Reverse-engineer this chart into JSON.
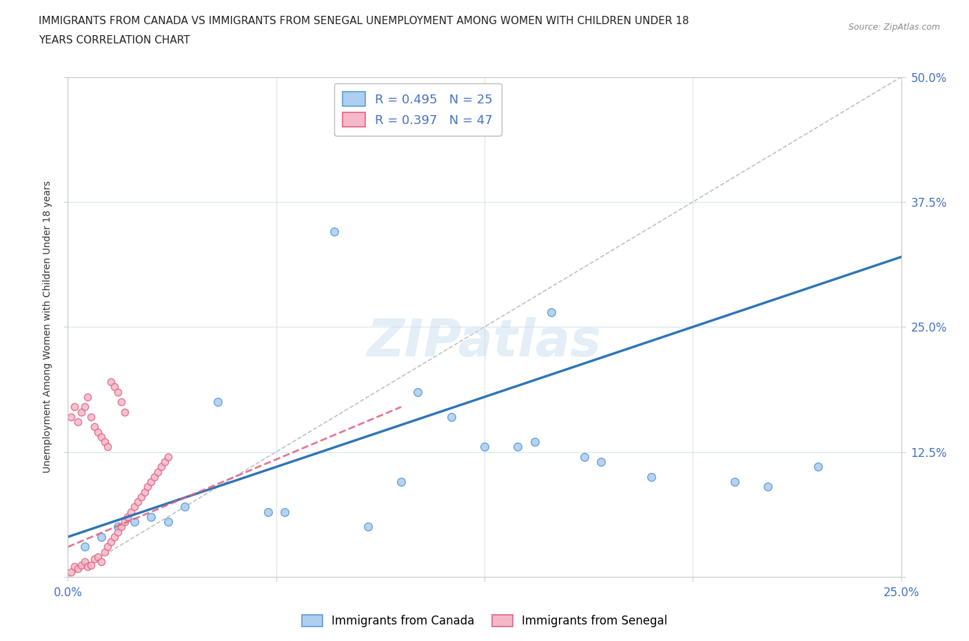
{
  "title_line1": "IMMIGRANTS FROM CANADA VS IMMIGRANTS FROM SENEGAL UNEMPLOYMENT AMONG WOMEN WITH CHILDREN UNDER 18",
  "title_line2": "YEARS CORRELATION CHART",
  "source": "Source: ZipAtlas.com",
  "ylabel": "Unemployment Among Women with Children Under 18 years",
  "xlim": [
    0.0,
    0.25
  ],
  "ylim": [
    0.0,
    0.5
  ],
  "xticks": [
    0.0,
    0.0625,
    0.125,
    0.1875,
    0.25
  ],
  "yticks": [
    0.0,
    0.125,
    0.25,
    0.375,
    0.5
  ],
  "xticklabels": [
    "0.0%",
    "",
    "",
    "",
    "25.0%"
  ],
  "yticklabels": [
    "",
    "12.5%",
    "25.0%",
    "37.5%",
    "50.0%"
  ],
  "canada_color": "#aecff0",
  "canada_edge": "#5b9bd5",
  "senegal_color": "#f4b8c8",
  "senegal_edge": "#e06080",
  "canada_R": 0.495,
  "canada_N": 25,
  "senegal_R": 0.397,
  "senegal_N": 47,
  "legend_label_canada": "Immigrants from Canada",
  "legend_label_senegal": "Immigrants from Senegal",
  "canada_x": [
    0.005,
    0.01,
    0.015,
    0.02,
    0.025,
    0.03,
    0.035,
    0.045,
    0.06,
    0.065,
    0.09,
    0.1,
    0.115,
    0.125,
    0.135,
    0.14,
    0.155,
    0.16,
    0.175,
    0.2,
    0.21,
    0.145,
    0.105,
    0.08,
    0.225
  ],
  "canada_y": [
    0.03,
    0.04,
    0.05,
    0.055,
    0.06,
    0.055,
    0.07,
    0.175,
    0.065,
    0.065,
    0.05,
    0.095,
    0.16,
    0.13,
    0.13,
    0.135,
    0.12,
    0.115,
    0.1,
    0.095,
    0.09,
    0.265,
    0.185,
    0.345,
    0.11
  ],
  "senegal_x": [
    0.001,
    0.002,
    0.003,
    0.004,
    0.005,
    0.006,
    0.007,
    0.008,
    0.009,
    0.01,
    0.011,
    0.012,
    0.013,
    0.014,
    0.015,
    0.016,
    0.017,
    0.018,
    0.019,
    0.02,
    0.021,
    0.022,
    0.023,
    0.024,
    0.025,
    0.026,
    0.027,
    0.028,
    0.029,
    0.03,
    0.001,
    0.002,
    0.003,
    0.004,
    0.005,
    0.006,
    0.007,
    0.008,
    0.009,
    0.01,
    0.011,
    0.012,
    0.013,
    0.014,
    0.015,
    0.016,
    0.017
  ],
  "senegal_y": [
    0.005,
    0.01,
    0.008,
    0.012,
    0.015,
    0.01,
    0.012,
    0.018,
    0.02,
    0.015,
    0.025,
    0.03,
    0.035,
    0.04,
    0.045,
    0.05,
    0.055,
    0.06,
    0.065,
    0.07,
    0.075,
    0.08,
    0.085,
    0.09,
    0.095,
    0.1,
    0.105,
    0.11,
    0.115,
    0.12,
    0.16,
    0.17,
    0.155,
    0.165,
    0.17,
    0.18,
    0.16,
    0.15,
    0.145,
    0.14,
    0.135,
    0.13,
    0.195,
    0.19,
    0.185,
    0.175,
    0.165
  ],
  "watermark": "ZIPatlas",
  "background_color": "#ffffff",
  "grid_color": "#dde8f0",
  "tick_color": "#4472c4",
  "axis_line_color": "#cccccc",
  "canada_line_color": "#2e75b6",
  "senegal_line_color": "#e06080",
  "diag_line_color": "#c0c0c0"
}
